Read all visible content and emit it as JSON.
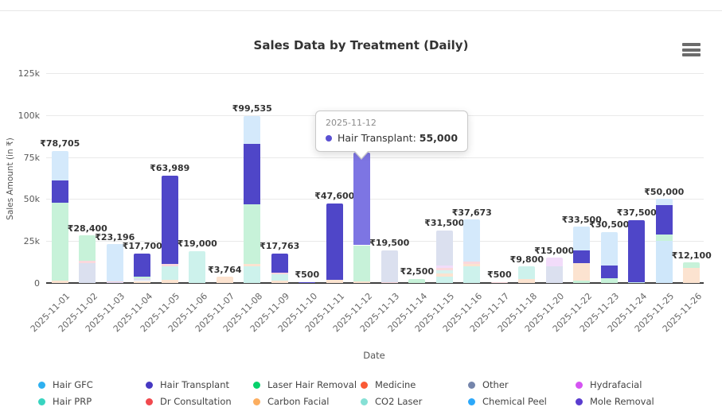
{
  "header": {
    "title": "Sales Data by Treatment (Daily)",
    "menu_icon": "hamburger"
  },
  "chart_data": {
    "type": "bar",
    "stacked": true,
    "title": "Sales Data by Treatment (Daily)",
    "xlabel": "Date",
    "ylabel": "Sales Amount (in ₹)",
    "ylim": [
      0,
      125000
    ],
    "grid": true,
    "legend_position": "bottom",
    "yticks": [
      {
        "label": "0",
        "value": 0
      },
      {
        "label": "25k",
        "value": 25000
      },
      {
        "label": "50k",
        "value": 50000
      },
      {
        "label": "75k",
        "value": 75000
      },
      {
        "label": "100k",
        "value": 100000
      },
      {
        "label": "125k",
        "value": 125000
      }
    ],
    "categories": [
      "2025-11-01",
      "2025-11-02",
      "2025-11-03",
      "2025-11-04",
      "2025-11-05",
      "2025-11-06",
      "2025-11-07",
      "2025-11-08",
      "2025-11-09",
      "2025-11-10",
      "2025-11-11",
      "2025-11-12",
      "2025-11-13",
      "2025-11-14",
      "2025-11-15",
      "2025-11-16",
      "2025-11-17",
      "2025-11-18",
      "2025-11-20",
      "2025-11-22",
      "2025-11-23",
      "2025-11-24",
      "2025-11-25",
      "2025-11-26"
    ],
    "bars": [
      {
        "date": "2025-11-01",
        "total_label": "₹78,705",
        "segments": [
          {
            "series": "Carbon Facial",
            "value": 1505,
            "color": "#fce3d0"
          },
          {
            "series": "Laser Hair Removal",
            "value": 46500,
            "color": "#c7f2d9"
          },
          {
            "series": "Hair Transplant",
            "value": 13000,
            "color": "#4f46c8"
          },
          {
            "series": "Hair GFC",
            "value": 17700,
            "color": "#d4e9fb"
          }
        ]
      },
      {
        "date": "2025-11-02",
        "total_label": "₹28,400",
        "segments": [
          {
            "series": "Other",
            "value": 12000,
            "color": "#dbe0ef"
          },
          {
            "series": "Dr Consultation",
            "value": 1400,
            "color": "#fad8dd"
          },
          {
            "series": "Laser Hair Removal",
            "value": 15000,
            "color": "#c7f2d9"
          }
        ]
      },
      {
        "date": "2025-11-03",
        "total_label": "₹23,196",
        "segments": [
          {
            "series": "Mole Removal",
            "value": 600,
            "color": "#d8d2f2"
          },
          {
            "series": "Dr Consultation",
            "value": 596,
            "color": "#fad8dd"
          },
          {
            "series": "Hair GFC",
            "value": 22000,
            "color": "#d4e9fb"
          }
        ]
      },
      {
        "date": "2025-11-04",
        "total_label": "₹17,700",
        "segments": [
          {
            "series": "Carbon Facial",
            "value": 1200,
            "color": "#fce3d0"
          },
          {
            "series": "Other",
            "value": 1500,
            "color": "#dbe0ef"
          },
          {
            "series": "Laser Hair Removal",
            "value": 1000,
            "color": "#c7f2d9"
          },
          {
            "series": "Hair Transplant",
            "value": 14000,
            "color": "#4f46c8"
          }
        ]
      },
      {
        "date": "2025-11-05",
        "total_label": "₹63,989",
        "segments": [
          {
            "series": "Carbon Facial",
            "value": 2000,
            "color": "#fce3d0"
          },
          {
            "series": "Hair PRP",
            "value": 8000,
            "color": "#cdf2ec"
          },
          {
            "series": "Dr Consultation",
            "value": 1489,
            "color": "#fad8dd"
          },
          {
            "series": "Hair Transplant",
            "value": 52500,
            "color": "#4f46c8"
          }
        ]
      },
      {
        "date": "2025-11-06",
        "total_label": "₹19,000",
        "segments": [
          {
            "series": "Hair PRP",
            "value": 19000,
            "color": "#cdf2ec"
          }
        ]
      },
      {
        "date": "2025-11-07",
        "total_label": "₹3,764",
        "segments": [
          {
            "series": "Carbon Facial",
            "value": 3764,
            "color": "#fce3d0"
          }
        ]
      },
      {
        "date": "2025-11-08",
        "total_label": "₹99,535",
        "segments": [
          {
            "series": "Hair PRP",
            "value": 10000,
            "color": "#cdf2ec"
          },
          {
            "series": "Carbon Facial",
            "value": 1535,
            "color": "#fce3d0"
          },
          {
            "series": "Laser Hair Removal",
            "value": 35500,
            "color": "#c7f2d9"
          },
          {
            "series": "Hair Transplant",
            "value": 36000,
            "color": "#4f46c8"
          },
          {
            "series": "Hair GFC",
            "value": 16500,
            "color": "#d4e9fb"
          }
        ]
      },
      {
        "date": "2025-11-09",
        "total_label": "₹17,763",
        "segments": [
          {
            "series": "Carbon Facial",
            "value": 1263,
            "color": "#fce3d0"
          },
          {
            "series": "Hair PRP",
            "value": 4000,
            "color": "#cdf2ec"
          },
          {
            "series": "Dr Consultation",
            "value": 1000,
            "color": "#fad8dd"
          },
          {
            "series": "Hair Transplant",
            "value": 11500,
            "color": "#4f46c8"
          }
        ]
      },
      {
        "date": "2025-11-10",
        "total_label": "₹500",
        "segments": [
          {
            "series": "Hair Transplant",
            "value": 500,
            "color": "#4f46c8"
          }
        ]
      },
      {
        "date": "2025-11-11",
        "total_label": "₹47,600",
        "segments": [
          {
            "series": "Carbon Facial",
            "value": 2100,
            "color": "#fce3d0"
          },
          {
            "series": "Hair Transplant",
            "value": 45500,
            "color": "#4f46c8"
          }
        ]
      },
      {
        "date": "2025-11-12",
        "total_label": "",
        "hovered": true,
        "segments": [
          {
            "series": "Carbon Facial",
            "value": 1000,
            "color": "#fce3d0"
          },
          {
            "series": "Laser Hair Removal",
            "value": 21500,
            "color": "#c7f2d9"
          },
          {
            "series": "Hair Transplant",
            "value": 55000,
            "color": "#7d75e3"
          }
        ]
      },
      {
        "date": "2025-11-13",
        "total_label": "₹19,500",
        "segments": [
          {
            "series": "Dr Consultation",
            "value": 500,
            "color": "#fad8dd"
          },
          {
            "series": "Other",
            "value": 19000,
            "color": "#dbe0ef"
          }
        ]
      },
      {
        "date": "2025-11-14",
        "total_label": "₹2,500",
        "segments": [
          {
            "series": "Laser Hair Removal",
            "value": 2500,
            "color": "#c7f2d9"
          }
        ]
      },
      {
        "date": "2025-11-15",
        "total_label": "₹31,500",
        "segments": [
          {
            "series": "Hair PRP",
            "value": 4000,
            "color": "#cdf2ec"
          },
          {
            "series": "Carbon Facial",
            "value": 1500,
            "color": "#fce3d0"
          },
          {
            "series": "CO2 Laser",
            "value": 2000,
            "color": "#d6f2ee"
          },
          {
            "series": "Dr Consultation",
            "value": 1500,
            "color": "#fad8dd"
          },
          {
            "series": "Hydrafacial",
            "value": 1500,
            "color": "#f2dcfa"
          },
          {
            "series": "Other",
            "value": 21000,
            "color": "#dbe0ef"
          }
        ]
      },
      {
        "date": "2025-11-16",
        "total_label": "₹37,673",
        "segments": [
          {
            "series": "Hair PRP",
            "value": 10000,
            "color": "#cdf2ec"
          },
          {
            "series": "Carbon Facial",
            "value": 1173,
            "color": "#fce3d0"
          },
          {
            "series": "Dr Consultation",
            "value": 1500,
            "color": "#fad8dd"
          },
          {
            "series": "Hair GFC",
            "value": 25000,
            "color": "#d4e9fb"
          }
        ]
      },
      {
        "date": "2025-11-17",
        "total_label": "₹500",
        "segments": [
          {
            "series": "Dr Consultation",
            "value": 500,
            "color": "#fad8dd"
          }
        ]
      },
      {
        "date": "2025-11-18",
        "total_label": "₹9,800",
        "segments": [
          {
            "series": "Carbon Facial",
            "value": 2300,
            "color": "#fce3d0"
          },
          {
            "series": "Hair PRP",
            "value": 7500,
            "color": "#cdf2ec"
          }
        ]
      },
      {
        "date": "2025-11-20",
        "total_label": "₹15,000",
        "segments": [
          {
            "series": "Other",
            "value": 10000,
            "color": "#dbe0ef"
          },
          {
            "series": "Hydrafacial",
            "value": 5000,
            "color": "#f2dcfa"
          }
        ]
      },
      {
        "date": "2025-11-22",
        "total_label": "₹33,500",
        "segments": [
          {
            "series": "Laser Hair Removal",
            "value": 1500,
            "color": "#c7f2d9"
          },
          {
            "series": "Carbon Facial",
            "value": 10500,
            "color": "#fce3d0"
          },
          {
            "series": "Hair Transplant",
            "value": 7500,
            "color": "#4f46c8"
          },
          {
            "series": "Hair GFC",
            "value": 14000,
            "color": "#d4e9fb"
          }
        ]
      },
      {
        "date": "2025-11-23",
        "total_label": "₹30,500",
        "segments": [
          {
            "series": "Laser Hair Removal",
            "value": 3000,
            "color": "#c7f2d9"
          },
          {
            "series": "Hair Transplant",
            "value": 7500,
            "color": "#4f46c8"
          },
          {
            "series": "Hair GFC",
            "value": 20000,
            "color": "#d4e9fb"
          }
        ]
      },
      {
        "date": "2025-11-24",
        "total_label": "₹37,500",
        "segments": [
          {
            "series": "Hair PRP",
            "value": 500,
            "color": "#cdf2ec"
          },
          {
            "series": "Hair Transplant",
            "value": 37000,
            "color": "#4f46c8"
          }
        ]
      },
      {
        "date": "2025-11-25",
        "total_label": "₹50,000",
        "segments": [
          {
            "series": "Chemical Peel",
            "value": 25000,
            "color": "#cfe7fa"
          },
          {
            "series": "Laser Hair Removal",
            "value": 4000,
            "color": "#c7f2d9"
          },
          {
            "series": "Hair Transplant",
            "value": 17500,
            "color": "#4f46c8"
          },
          {
            "series": "Hair GFC",
            "value": 3500,
            "color": "#d4e9fb"
          }
        ]
      },
      {
        "date": "2025-11-26",
        "total_label": "₹12,100",
        "segments": [
          {
            "series": "Carbon Facial",
            "value": 9100,
            "color": "#fce3d0"
          },
          {
            "series": "Laser Hair Removal",
            "value": 3000,
            "color": "#c7f2d9"
          }
        ]
      }
    ],
    "legend": [
      {
        "label": "Hair GFC",
        "color": "#2eb0f0"
      },
      {
        "label": "Hair Transplant",
        "color": "#4638c2"
      },
      {
        "label": "Laser Hair Removal",
        "color": "#07d16b"
      },
      {
        "label": "Medicine",
        "color": "#fa5a35"
      },
      {
        "label": "Other",
        "color": "#7585ab"
      },
      {
        "label": "Hydrafacial",
        "color": "#d554f2"
      },
      {
        "label": "Hair PRP",
        "color": "#38d4c0"
      },
      {
        "label": "Dr Consultation",
        "color": "#f1494e"
      },
      {
        "label": "Carbon Facial",
        "color": "#fcae60"
      },
      {
        "label": "CO2 Laser",
        "color": "#86e0d5"
      },
      {
        "label": "Chemical Peel",
        "color": "#2ca8fa"
      },
      {
        "label": "Mole Removal",
        "color": "#5a3ccf"
      }
    ],
    "tooltip": {
      "date": "2025-11-12",
      "series": "Hair Transplant",
      "series_label": "Hair Transplant:",
      "value": "55,000",
      "marker_color": "#5a50d2"
    }
  }
}
